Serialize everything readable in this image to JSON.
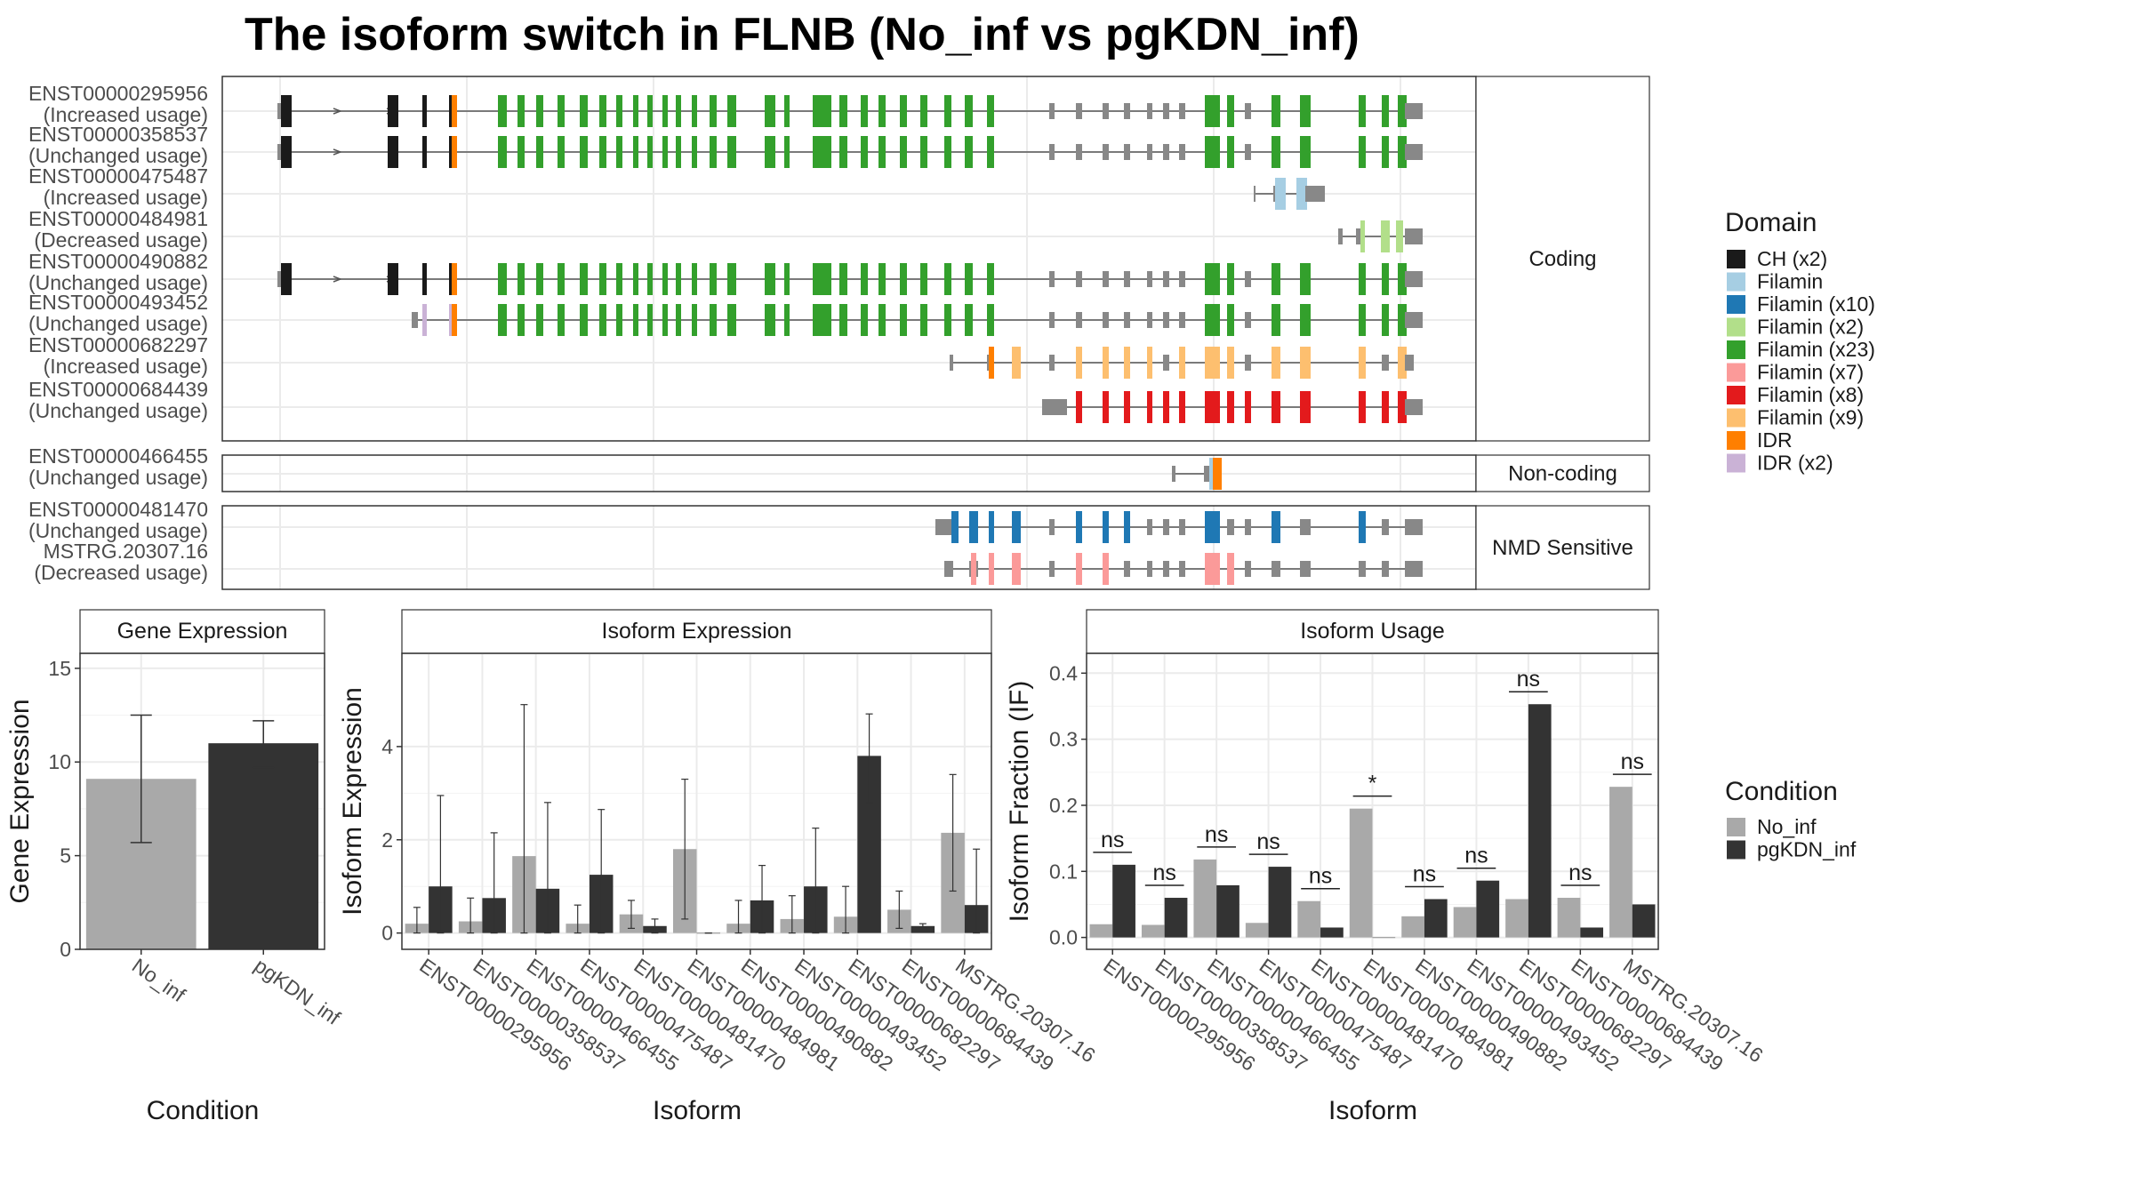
{
  "title": "The isoform switch in FLNB (No_inf vs pgKDN_inf)",
  "colors": {
    "no_inf": "#a9a9a9",
    "pgkdn_inf": "#333333",
    "utr": "#888888",
    "intron": "#555555",
    "grid": "#ebebeb",
    "panel_border": "#333333",
    "strip_fill": "#ffffff"
  },
  "structure": {
    "domain_legend": {
      "title": "Domain",
      "items": [
        {
          "label": "CH (x2)",
          "color": "#1a1a1a"
        },
        {
          "label": "Filamin",
          "color": "#a6cee3"
        },
        {
          "label": "Filamin (x10)",
          "color": "#1f78b4"
        },
        {
          "label": "Filamin (x2)",
          "color": "#b2df8a"
        },
        {
          "label": "Filamin (x23)",
          "color": "#33a02c"
        },
        {
          "label": "Filamin (x7)",
          "color": "#fb9a99"
        },
        {
          "label": "Filamin (x8)",
          "color": "#e31a1c"
        },
        {
          "label": "Filamin (x9)",
          "color": "#fdbf6f"
        },
        {
          "label": "IDR",
          "color": "#ff7f00"
        },
        {
          "label": "IDR (x2)",
          "color": "#cab2d6"
        }
      ]
    },
    "groups": [
      {
        "label": "Coding",
        "isoforms": [
          {
            "id": "ENST00000295956",
            "usage": "(Increased usage)"
          },
          {
            "id": "ENST00000358537",
            "usage": "(Unchanged usage)"
          },
          {
            "id": "ENST00000475487",
            "usage": "(Increased usage)"
          },
          {
            "id": "ENST00000484981",
            "usage": "(Decreased usage)"
          },
          {
            "id": "ENST00000490882",
            "usage": "(Unchanged usage)"
          },
          {
            "id": "ENST00000493452",
            "usage": "(Unchanged usage)"
          },
          {
            "id": "ENST00000682297",
            "usage": "(Increased usage)"
          },
          {
            "id": "ENST00000684439",
            "usage": "(Unchanged usage)"
          }
        ]
      },
      {
        "label": "Non-coding",
        "isoforms": [
          {
            "id": "ENST00000466455",
            "usage": "(Unchanged usage)"
          }
        ]
      },
      {
        "label": "NMD Sensitive",
        "isoforms": [
          {
            "id": "ENST00000481470",
            "usage": "(Unchanged usage)"
          },
          {
            "id": "MSTRG.20307.16",
            "usage": "(Decreased usage)"
          }
        ]
      }
    ]
  },
  "condition_legend": {
    "title": "Condition",
    "items": [
      {
        "label": "No_inf",
        "key": "no_inf"
      },
      {
        "label": "pgKDN_inf",
        "key": "pgkdn_inf"
      }
    ]
  },
  "chart_data": [
    {
      "type": "bar",
      "title": "Gene Expression",
      "xlabel": "Condition",
      "ylabel": "Gene Expression",
      "ylim": [
        0,
        15.8
      ],
      "yticks": [
        0,
        5,
        10,
        15
      ],
      "categories": [
        "No_inf",
        "pgKDN_inf"
      ],
      "values": [
        9.1,
        11.0
      ],
      "errors": [
        [
          5.7,
          12.5
        ],
        [
          9.7,
          12.2
        ]
      ]
    },
    {
      "type": "bar",
      "title": "Isoform Expression",
      "xlabel": "Isoform",
      "ylabel": "Isoform Expression",
      "ylim": [
        -0.35,
        6.0
      ],
      "yticks": [
        0,
        2,
        4
      ],
      "categories": [
        "ENST00000295956",
        "ENST00000358537",
        "ENST00000466455",
        "ENST00000475487",
        "ENST00000481470",
        "ENST00000484981",
        "ENST00000490882",
        "ENST00000493452",
        "ENST00000682297",
        "ENST00000684439",
        "MSTRG.20307.16"
      ],
      "series": [
        {
          "name": "No_inf",
          "values": [
            0.2,
            0.25,
            1.65,
            0.2,
            0.4,
            1.8,
            0.2,
            0.3,
            0.35,
            0.5,
            2.15
          ],
          "errors": [
            [
              0.0,
              0.55
            ],
            [
              0.0,
              0.75
            ],
            [
              0.0,
              4.9
            ],
            [
              0.0,
              0.6
            ],
            [
              0.1,
              0.7
            ],
            [
              0.3,
              3.3
            ],
            [
              0.0,
              0.7
            ],
            [
              0.0,
              0.8
            ],
            [
              0.0,
              1.0
            ],
            [
              0.1,
              0.9
            ],
            [
              0.9,
              3.4
            ]
          ]
        },
        {
          "name": "pgKDN_inf",
          "values": [
            1.0,
            0.75,
            0.95,
            1.25,
            0.15,
            0.0,
            0.7,
            1.0,
            3.8,
            0.15,
            0.6
          ],
          "errors": [
            [
              0.0,
              2.95
            ],
            [
              0.0,
              2.15
            ],
            [
              0.0,
              2.8
            ],
            [
              0.0,
              2.65
            ],
            [
              0.0,
              0.3
            ],
            [
              0.0,
              0.0
            ],
            [
              0.0,
              1.45
            ],
            [
              0.0,
              2.25
            ],
            [
              2.8,
              4.7
            ],
            [
              0.1,
              0.2
            ],
            [
              0.0,
              1.8
            ]
          ]
        }
      ]
    },
    {
      "type": "bar",
      "title": "Isoform Usage",
      "xlabel": "Isoform",
      "ylabel": "Isoform Fraction (IF)",
      "ylim": [
        -0.018,
        0.43
      ],
      "yticks": [
        0.0,
        0.1,
        0.2,
        0.3,
        0.4
      ],
      "ytick_labels": [
        "0.0",
        "0.1",
        "0.2",
        "0.3",
        "0.4"
      ],
      "categories": [
        "ENST00000295956",
        "ENST00000358537",
        "ENST00000466455",
        "ENST00000475487",
        "ENST00000481470",
        "ENST00000484981",
        "ENST00000490882",
        "ENST00000493452",
        "ENST00000682297",
        "ENST00000684439",
        "MSTRG.20307.16"
      ],
      "series": [
        {
          "name": "No_inf",
          "values": [
            0.02,
            0.019,
            0.118,
            0.022,
            0.055,
            0.195,
            0.032,
            0.046,
            0.058,
            0.06,
            0.228
          ]
        },
        {
          "name": "pgKDN_inf",
          "values": [
            0.11,
            0.06,
            0.079,
            0.107,
            0.015,
            0.0,
            0.058,
            0.086,
            0.353,
            0.015,
            0.05
          ]
        }
      ],
      "significance": [
        "ns",
        "ns",
        "ns",
        "ns",
        "ns",
        "*",
        "ns",
        "ns",
        "ns",
        "ns",
        "ns"
      ]
    }
  ]
}
